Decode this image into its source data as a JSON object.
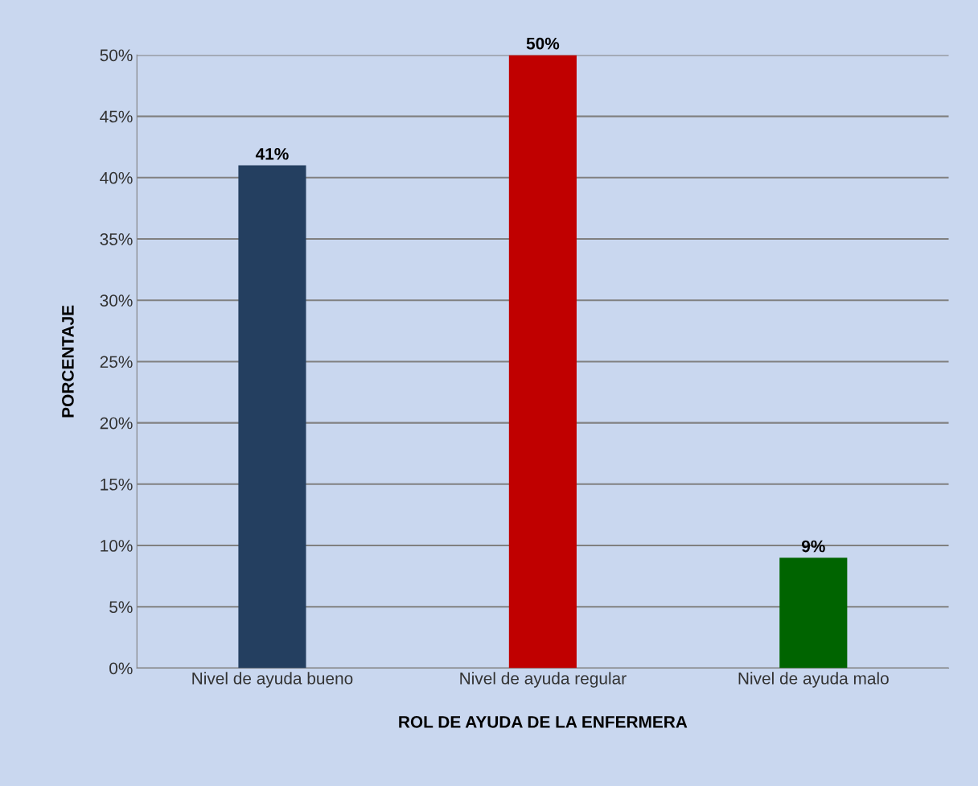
{
  "chart_data": {
    "type": "bar",
    "xlabel": "ROL DE AYUDA DE LA ENFERMERA",
    "ylabel": "PORCENTAJE",
    "categories": [
      "Nivel de ayuda bueno",
      "Nivel de ayuda regular",
      "Nivel de ayuda malo"
    ],
    "values": [
      41,
      50,
      9
    ],
    "colors": [
      "#243f60",
      "#c00000",
      "#006400"
    ],
    "value_labels": [
      "41%",
      "50%",
      "9%"
    ],
    "ylim": [
      0,
      50
    ],
    "yticks": [
      {
        "value": 0,
        "label": "0%"
      },
      {
        "value": 5,
        "label": "5%"
      },
      {
        "value": 10,
        "label": "10%"
      },
      {
        "value": 15,
        "label": "15%"
      },
      {
        "value": 20,
        "label": "20%"
      },
      {
        "value": 25,
        "label": "25%"
      },
      {
        "value": 30,
        "label": "30%"
      },
      {
        "value": 35,
        "label": "35%"
      },
      {
        "value": 40,
        "label": "40%"
      },
      {
        "value": 45,
        "label": "45%"
      },
      {
        "value": 50,
        "label": "50%"
      }
    ],
    "grid": "y"
  }
}
